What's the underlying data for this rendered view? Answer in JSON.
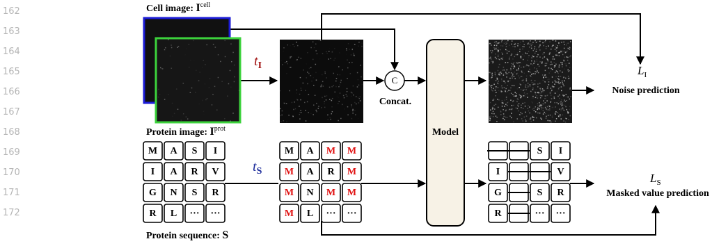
{
  "line_numbers": [
    "162",
    "163",
    "164",
    "165",
    "166",
    "167",
    "168",
    "169",
    "170",
    "171",
    "172"
  ],
  "cell_image_label": {
    "text": "Cell image: ",
    "symbol": "I",
    "sup": "cell"
  },
  "protein_image_label": {
    "text": "Protein image: ",
    "symbol": "I",
    "sup": "prot"
  },
  "protein_sequence_label": {
    "text": "Protein sequence: ",
    "symbol": "S"
  },
  "t_image": {
    "symbol": "t",
    "sub": "I"
  },
  "t_sequence": {
    "symbol": "t",
    "sub": "S"
  },
  "concat": {
    "symbol": "C",
    "label": "Concat."
  },
  "model": "Model",
  "loss_image": {
    "symbol": "L",
    "sub": "I",
    "label": "Noise prediction"
  },
  "loss_sequence": {
    "symbol": "L",
    "sub": "S",
    "label": "Masked value prediction"
  },
  "grids": [
    {
      "cells": [
        [
          "M",
          "A",
          "S",
          "I"
        ],
        [
          "I",
          "A",
          "R",
          "V"
        ],
        [
          "G",
          "N",
          "S",
          "R"
        ],
        [
          "R",
          "L",
          "···",
          "···"
        ]
      ]
    },
    {
      "cells": [
        [
          "M",
          "A",
          "M",
          "M"
        ],
        [
          "M",
          "A",
          "R",
          "M"
        ],
        [
          "M",
          "N",
          "M",
          "M"
        ],
        [
          "M",
          "L",
          "···",
          "···"
        ]
      ],
      "masked": [
        [
          false,
          false,
          true,
          true
        ],
        [
          true,
          false,
          false,
          true
        ],
        [
          true,
          false,
          true,
          true
        ],
        [
          true,
          false,
          false,
          false
        ]
      ]
    },
    {
      "cells": [
        [
          null,
          null,
          "S",
          "I"
        ],
        [
          "I",
          null,
          null,
          "V"
        ],
        [
          "G",
          null,
          "S",
          "R"
        ],
        [
          "R",
          null,
          "···",
          "···"
        ]
      ]
    }
  ]
}
